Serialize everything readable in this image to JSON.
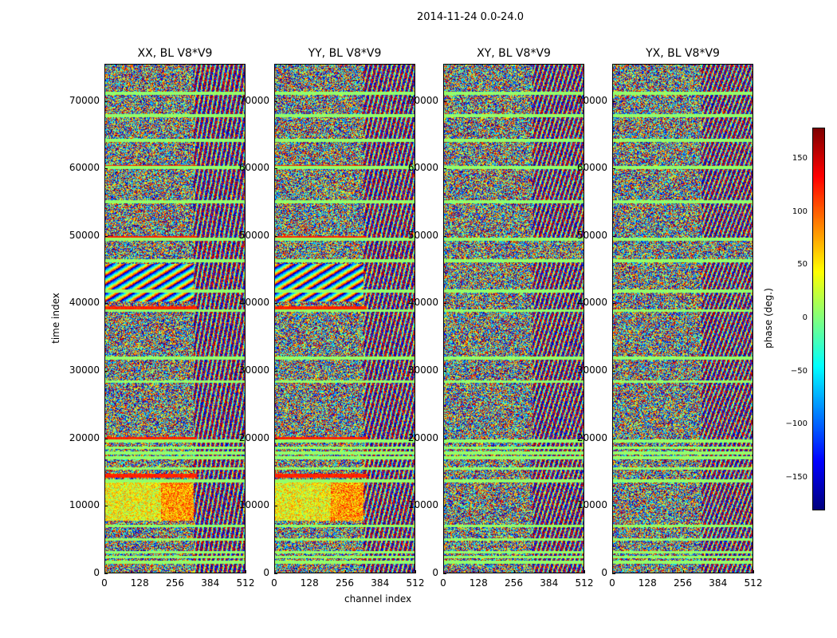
{
  "chart_data": {
    "type": "heatmap",
    "suptitle": "2014-11-24 0.0-24.0",
    "xlabel": "channel index",
    "ylabel": "time index",
    "xlim": [
      0,
      512
    ],
    "ylim": [
      0,
      75500
    ],
    "x_ticks": [
      "0",
      "128",
      "256",
      "384",
      "512"
    ],
    "y_ticks": [
      "0",
      "10000",
      "20000",
      "30000",
      "40000",
      "50000",
      "60000",
      "70000"
    ],
    "panels": [
      {
        "title": "XX, BL V8*V9",
        "pol": "XX"
      },
      {
        "title": "YY, BL V8*V9",
        "pol": "YY"
      },
      {
        "title": "XY, BL V8*V9",
        "pol": "XY"
      },
      {
        "title": "YX, BL V8*V9",
        "pol": "YX"
      }
    ],
    "colorbar": {
      "label": "phase (deg.)",
      "colormap": "jet",
      "range": [
        -180,
        180
      ],
      "ticks": [
        "150",
        "100",
        "50",
        "0",
        "−50",
        "−100",
        "−150"
      ]
    }
  }
}
